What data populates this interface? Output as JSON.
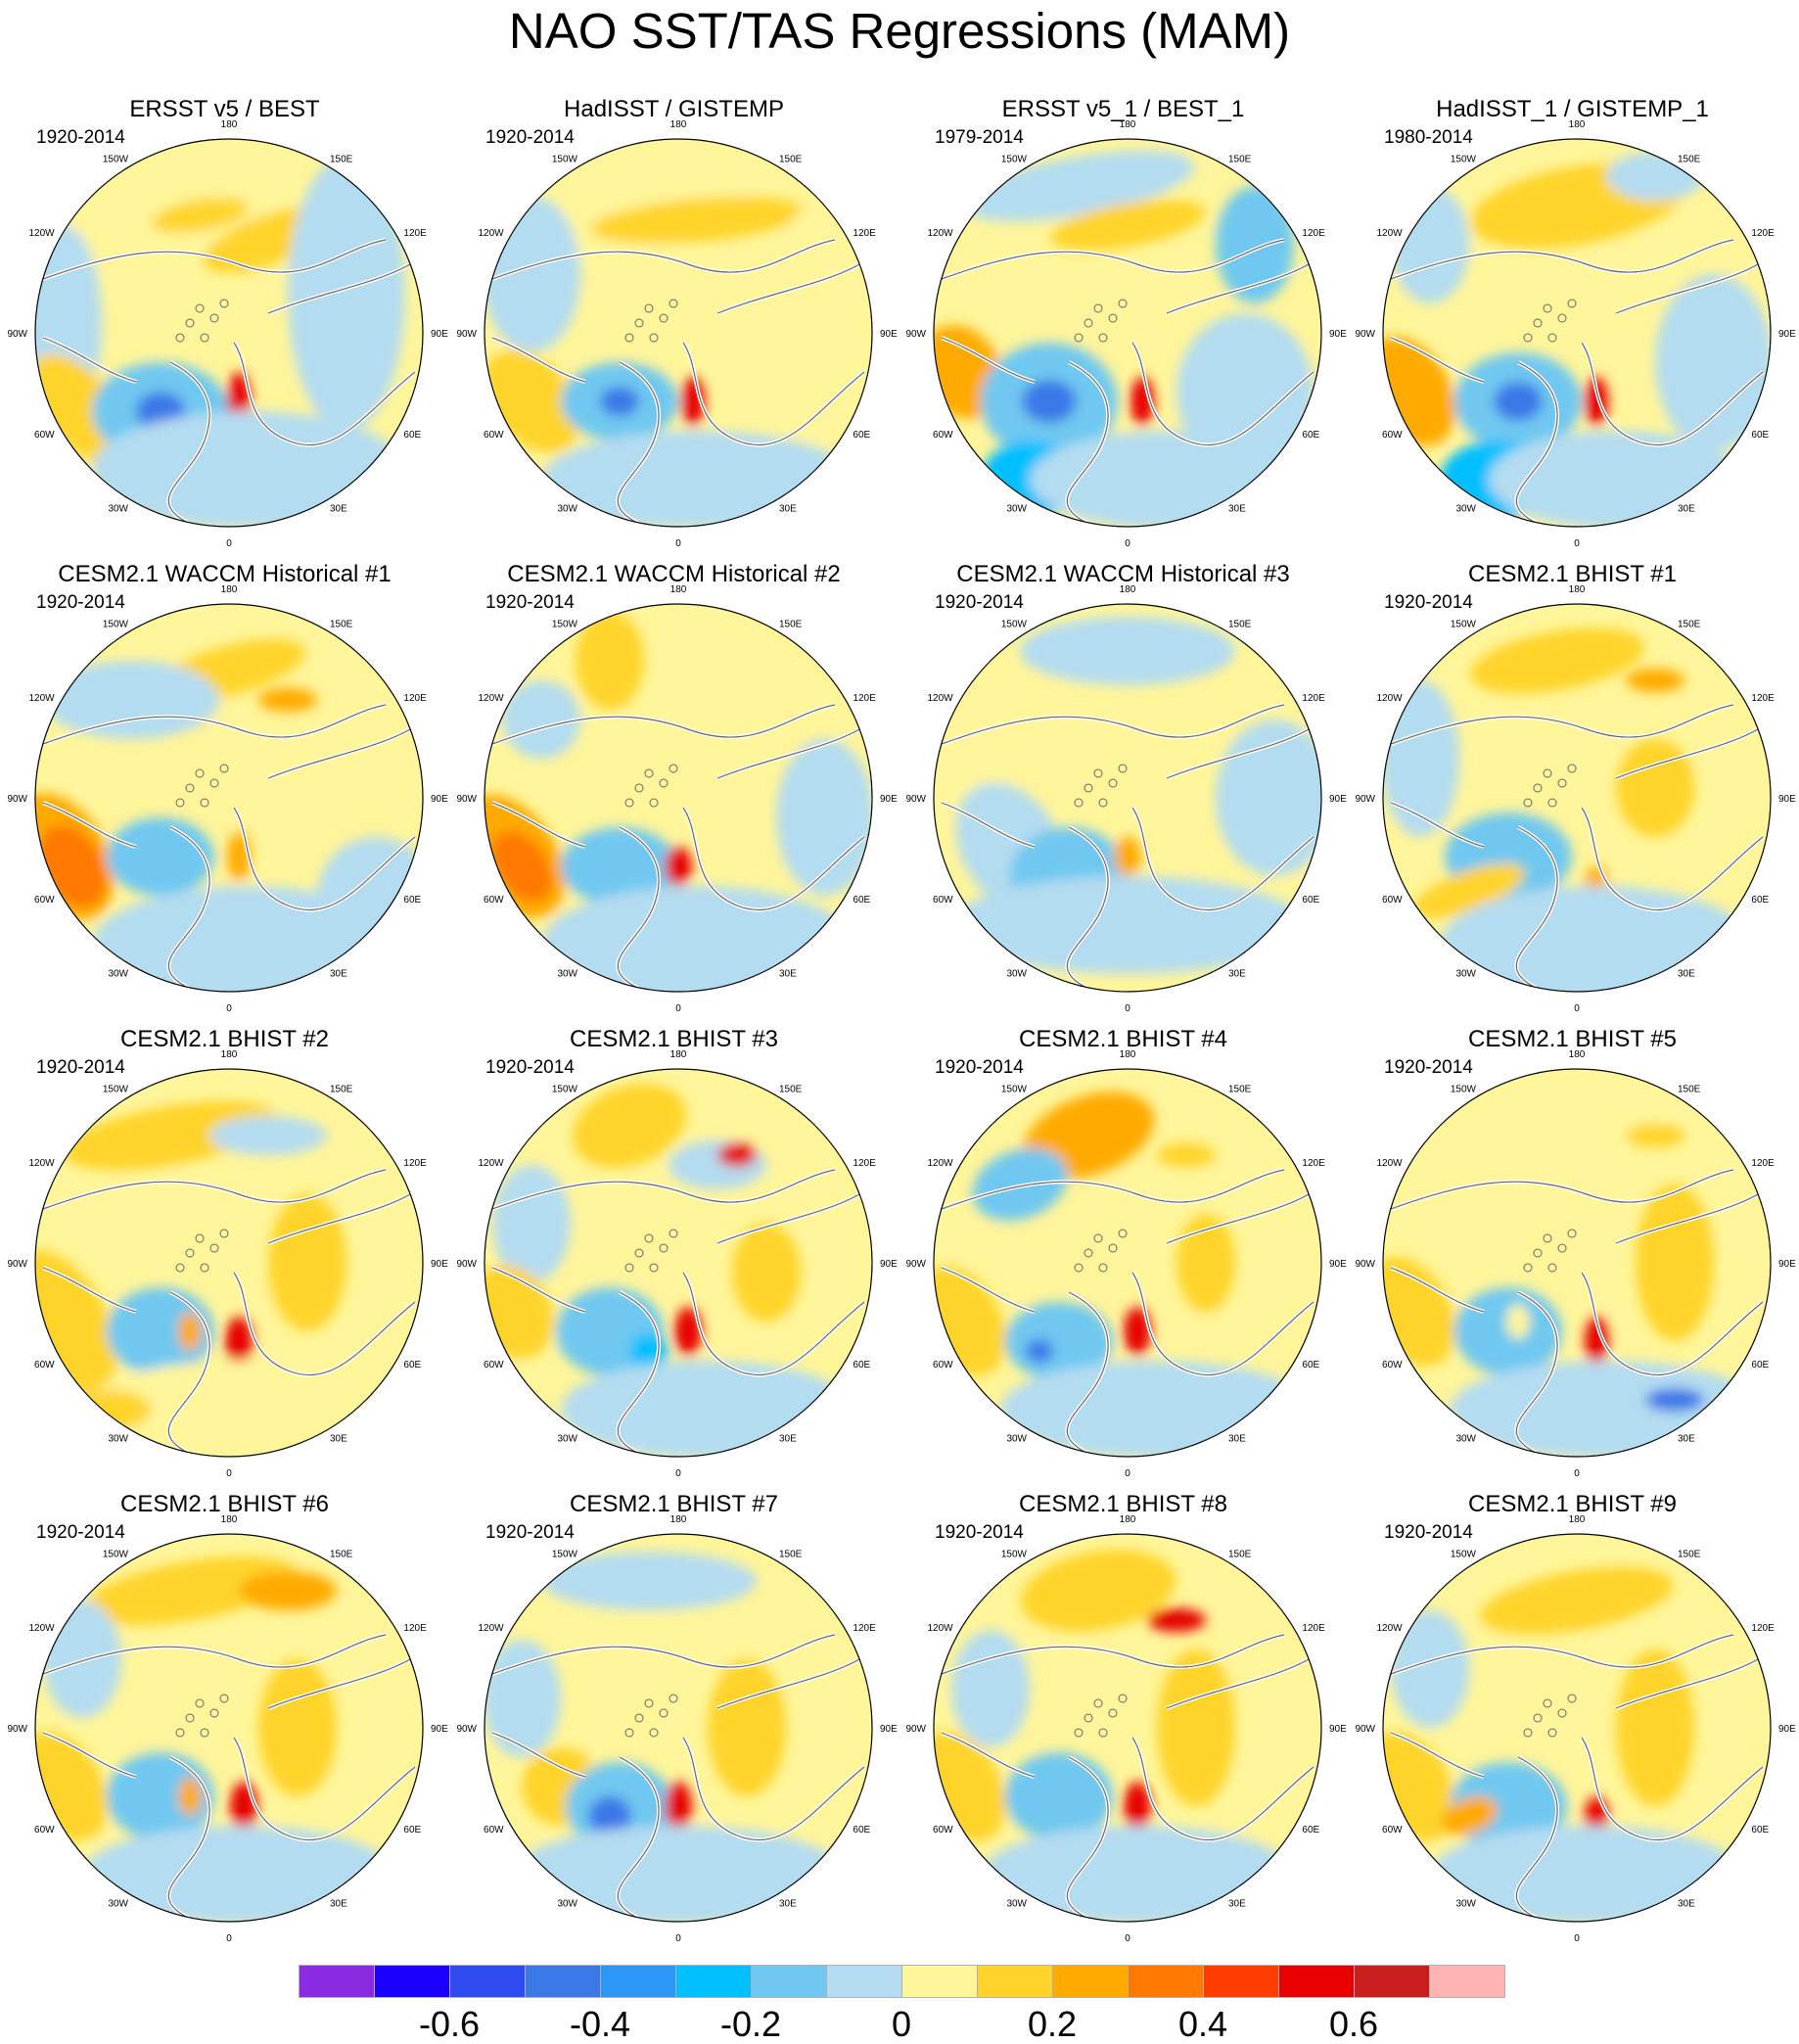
{
  "figure_title": "NAO SST/TAS Regressions (MAM)",
  "panels": [
    {
      "title": "ERSST v5 / BEST",
      "period": "1920-2014"
    },
    {
      "title": "HadISST / GISTEMP",
      "period": "1920-2014"
    },
    {
      "title": "ERSST v5_1 / BEST_1",
      "period": "1979-2014"
    },
    {
      "title": "HadISST_1 / GISTEMP_1",
      "period": "1980-2014"
    },
    {
      "title": "CESM2.1 WACCM Historical #1",
      "period": "1920-2014"
    },
    {
      "title": "CESM2.1 WACCM Historical #2",
      "period": "1920-2014"
    },
    {
      "title": "CESM2.1 WACCM Historical #3",
      "period": "1920-2014"
    },
    {
      "title": "CESM2.1 BHIST #1",
      "period": "1920-2014"
    },
    {
      "title": "CESM2.1 BHIST #2",
      "period": "1920-2014"
    },
    {
      "title": "CESM2.1 BHIST #3",
      "period": "1920-2014"
    },
    {
      "title": "CESM2.1 BHIST #4",
      "period": "1920-2014"
    },
    {
      "title": "CESM2.1 BHIST #5",
      "period": "1920-2014"
    },
    {
      "title": "CESM2.1 BHIST #6",
      "period": "1920-2014"
    },
    {
      "title": "CESM2.1 BHIST #7",
      "period": "1920-2014"
    },
    {
      "title": "CESM2.1 BHIST #8",
      "period": "1920-2014"
    },
    {
      "title": "CESM2.1 BHIST #9",
      "period": "1920-2014"
    }
  ],
  "longitude_labels": [
    "180",
    "150E",
    "120E",
    "90E",
    "60E",
    "30E",
    "0",
    "30W",
    "60W",
    "90W",
    "120W",
    "150W"
  ],
  "colorbar": {
    "colors": [
      "#8a2be2",
      "#1a00ff",
      "#2f4bf0",
      "#3a78e8",
      "#2b96f5",
      "#00bfff",
      "#70c8f0",
      "#b4dcf0",
      "#fff59a",
      "#ffd42a",
      "#ffaa00",
      "#ff7800",
      "#ff3c00",
      "#e60000",
      "#c81e1e",
      "#ffb4b4"
    ],
    "labels": [
      "-0.6",
      "-0.4",
      "-0.2",
      "0",
      "0.2",
      "0.4",
      "0.6"
    ],
    "label_values": [
      -0.6,
      -0.4,
      -0.2,
      0,
      0.2,
      0.4,
      0.6
    ],
    "levels": [
      -0.7,
      -0.6,
      -0.5,
      -0.4,
      -0.3,
      -0.2,
      -0.1,
      0,
      0.1,
      0.2,
      0.3,
      0.4,
      0.5,
      0.6,
      0.7
    ]
  }
}
